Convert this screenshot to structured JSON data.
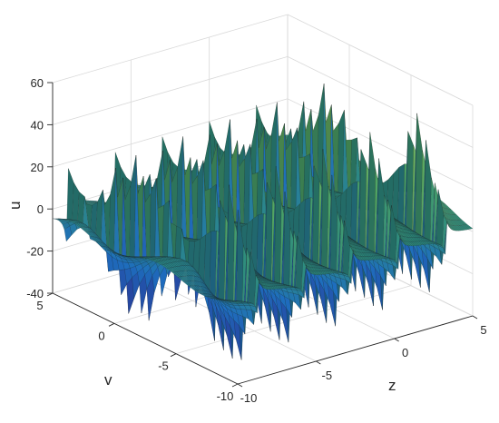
{
  "chart_data": {
    "type": "surface",
    "title": "",
    "xlabel": "z",
    "ylabel": "v",
    "zlabel": "u",
    "xlim": [
      -10,
      5
    ],
    "ylim": [
      -10,
      5
    ],
    "zlim": [
      -40,
      60
    ],
    "x_ticks": [
      -10,
      -5,
      0,
      5
    ],
    "y_ticks": [
      -10,
      -5,
      0,
      5
    ],
    "z_ticks": [
      -40,
      -20,
      0,
      20,
      40,
      60
    ],
    "grid": true,
    "colormap": "parula",
    "surface": {
      "description_of_shape": "periodic ridges running along v, with sharp positive and negative spikes",
      "ridges_z": [
        -8.5,
        -5.5,
        -2.5,
        0.5,
        3.5
      ],
      "spike_max": 58,
      "spike_min": -40,
      "baseline": 0
    },
    "colors": {
      "high": "#8fbf5e",
      "mid": "#2e8c7e",
      "low_bright": "#f5e12a",
      "low_dark": "#2b2a8c",
      "edge": "#111111"
    }
  }
}
